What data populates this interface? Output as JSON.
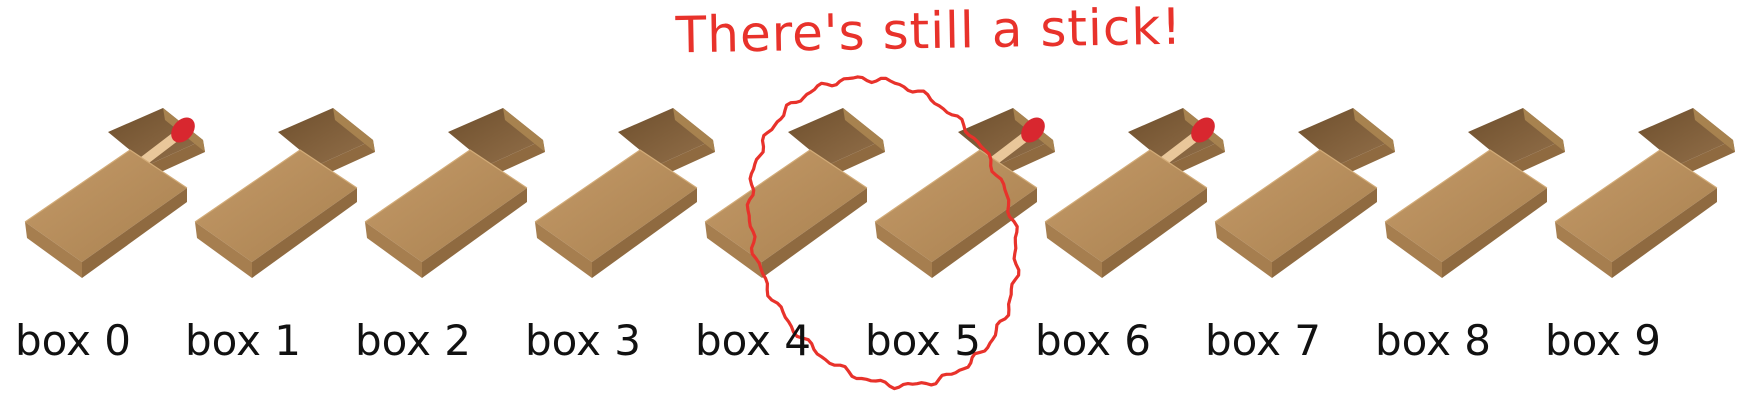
{
  "annotation": {
    "text": "There's still a stick!",
    "color": "#e8322b",
    "highlighted_box": 5
  },
  "colors": {
    "box_top": "#b88e5c",
    "box_side": "#8f6a40",
    "box_front": "#a67e4f",
    "tray_inner": "#7b5a35",
    "match_stick": "#e9c79a",
    "match_head": "#d8272f",
    "label_text": "#111111"
  },
  "boxes": [
    {
      "label": "box 0",
      "has_stick": true
    },
    {
      "label": "box 1",
      "has_stick": false
    },
    {
      "label": "box 2",
      "has_stick": false
    },
    {
      "label": "box 3",
      "has_stick": false
    },
    {
      "label": "box 4",
      "has_stick": false
    },
    {
      "label": "box 5",
      "has_stick": true
    },
    {
      "label": "box 6",
      "has_stick": true
    },
    {
      "label": "box 7",
      "has_stick": false
    },
    {
      "label": "box 8",
      "has_stick": false
    },
    {
      "label": "box 9",
      "has_stick": false
    }
  ]
}
